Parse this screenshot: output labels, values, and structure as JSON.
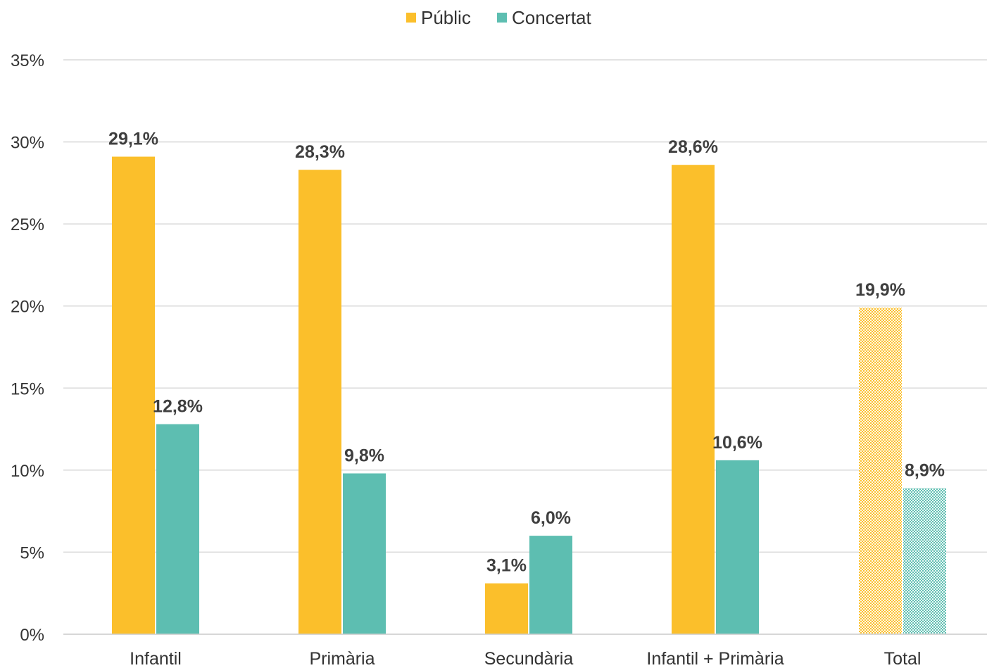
{
  "chart_data": {
    "type": "bar",
    "title": "",
    "xlabel": "",
    "ylabel": "",
    "categories": [
      "Infantil",
      "Primària",
      "Secundària",
      "Infantil + Primària",
      "Total"
    ],
    "series": [
      {
        "name": "Públic",
        "color": "#FBBF2B",
        "values": [
          29.1,
          28.3,
          3.1,
          28.6,
          19.9
        ],
        "labels": [
          "29,1%",
          "28,3%",
          "3,1%",
          "28,6%",
          "19,9%"
        ]
      },
      {
        "name": "Concertat",
        "color": "#5DBEB1",
        "values": [
          12.8,
          9.8,
          6.0,
          10.6,
          8.9
        ],
        "labels": [
          "12,8%",
          "9,8%",
          "6,0%",
          "10,6%",
          "8,9%"
        ]
      }
    ],
    "patterned_categories": [
      "Total"
    ],
    "ylim": [
      0,
      35
    ],
    "yticks": [
      0,
      5,
      10,
      15,
      20,
      25,
      30,
      35
    ],
    "ytick_labels": [
      "0%",
      "5%",
      "10%",
      "15%",
      "20%",
      "25%",
      "30%",
      "35%"
    ],
    "grid": true,
    "legend_position": "top-center"
  }
}
